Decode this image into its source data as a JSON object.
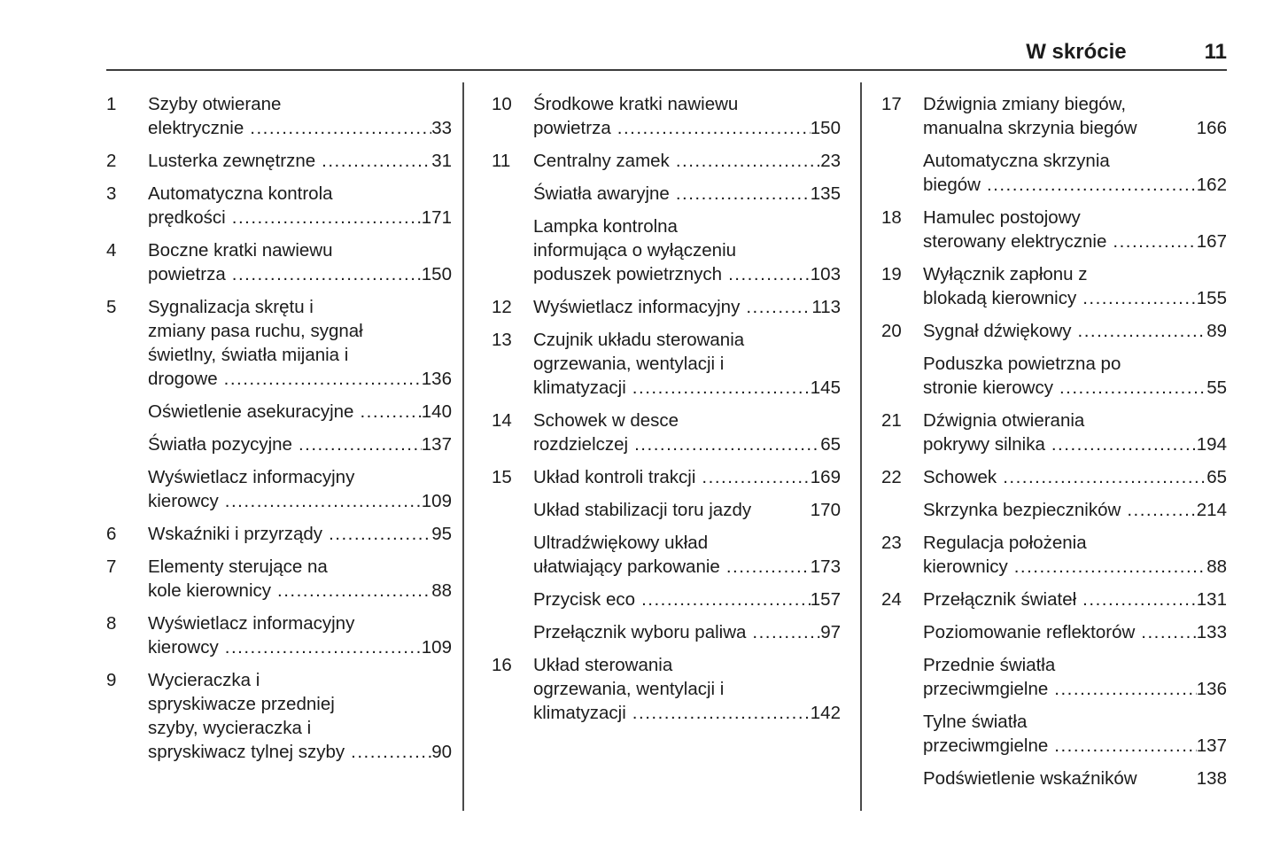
{
  "header": {
    "title": "W skrócie",
    "page_number": "11"
  },
  "toc": {
    "columns": [
      {
        "entries": [
          {
            "num": "1",
            "wrap": [
              "Szyby otwierane"
            ],
            "last": "elektrycznie",
            "page": "33",
            "dots": true
          },
          {
            "num": "2",
            "wrap": [],
            "last": "Lusterka zewnętrzne",
            "page": "31",
            "dots": true
          },
          {
            "num": "3",
            "wrap": [
              "Automatyczna kontrola"
            ],
            "last": "prędkości",
            "page": "171",
            "dots": true
          },
          {
            "num": "4",
            "wrap": [
              "Boczne kratki nawiewu"
            ],
            "last": "powietrza",
            "page": "150",
            "dots": true
          },
          {
            "num": "5",
            "wrap": [
              "Sygnalizacja skrętu i",
              "zmiany pasa ruchu, sygnał",
              "świetlny, światła mijania i"
            ],
            "last": "drogowe",
            "page": "136",
            "dots": true
          },
          {
            "num": "",
            "wrap": [],
            "last": "Oświetlenie asekuracyjne",
            "page": "140",
            "dots": true
          },
          {
            "num": "",
            "wrap": [],
            "last": "Światła pozycyjne",
            "page": "137",
            "dots": true
          },
          {
            "num": "",
            "wrap": [
              "Wyświetlacz informacyjny"
            ],
            "last": "kierowcy",
            "page": "109",
            "dots": true
          },
          {
            "num": "6",
            "wrap": [],
            "last": "Wskaźniki i przyrządy",
            "page": "95",
            "dots": true
          },
          {
            "num": "7",
            "wrap": [
              "Elementy sterujące na"
            ],
            "last": "kole kierownicy",
            "page": "88",
            "dots": true
          },
          {
            "num": "8",
            "wrap": [
              "Wyświetlacz informacyjny"
            ],
            "last": "kierowcy",
            "page": "109",
            "dots": true
          },
          {
            "num": "9",
            "wrap": [
              "Wycieraczka i",
              "spryskiwacze przedniej",
              "szyby, wycieraczka i"
            ],
            "last": "spryskiwacz tylnej szyby",
            "page": "90",
            "dots": true
          }
        ]
      },
      {
        "entries": [
          {
            "num": "10",
            "wrap": [
              "Środkowe kratki nawiewu"
            ],
            "last": "powietrza",
            "page": "150",
            "dots": true
          },
          {
            "num": "11",
            "wrap": [],
            "last": "Centralny zamek",
            "page": "23",
            "dots": true
          },
          {
            "num": "",
            "wrap": [],
            "last": "Światła awaryjne",
            "page": "135",
            "dots": true
          },
          {
            "num": "",
            "wrap": [
              "Lampka kontrolna",
              "informująca o wyłączeniu"
            ],
            "last": "poduszek powietrznych",
            "page": "103",
            "dots": true
          },
          {
            "num": "12",
            "wrap": [],
            "last": "Wyświetlacz informacyjny",
            "page": "113",
            "dots": true
          },
          {
            "num": "13",
            "wrap": [
              "Czujnik układu sterowania",
              "ogrzewania, wentylacji i"
            ],
            "last": "klimatyzacji",
            "page": "145",
            "dots": true
          },
          {
            "num": "14",
            "wrap": [
              "Schowek w desce"
            ],
            "last": "rozdzielczej",
            "page": "65",
            "dots": true
          },
          {
            "num": "15",
            "wrap": [],
            "last": "Układ kontroli trakcji",
            "page": "169",
            "dots": true
          },
          {
            "num": "",
            "wrap": [],
            "last": "Układ stabilizacji toru jazdy",
            "page": "170",
            "dots": false
          },
          {
            "num": "",
            "wrap": [
              "Ultradźwiękowy układ"
            ],
            "last": "ułatwiający parkowanie",
            "page": "173",
            "dots": true
          },
          {
            "num": "",
            "wrap": [],
            "last": "Przycisk eco",
            "page": "157",
            "dots": true
          },
          {
            "num": "",
            "wrap": [],
            "last": "Przełącznik wyboru paliwa",
            "page": "97",
            "dots": true
          },
          {
            "num": "16",
            "wrap": [
              "Układ sterowania",
              "ogrzewania, wentylacji i"
            ],
            "last": "klimatyzacji",
            "page": "142",
            "dots": true
          }
        ]
      },
      {
        "entries": [
          {
            "num": "17",
            "wrap": [
              "Dźwignia zmiany biegów,"
            ],
            "last": "manualna skrzynia biegów",
            "page": "166",
            "dots": false
          },
          {
            "num": "",
            "wrap": [
              "Automatyczna skrzynia"
            ],
            "last": "biegów",
            "page": "162",
            "dots": true
          },
          {
            "num": "18",
            "wrap": [
              "Hamulec postojowy"
            ],
            "last": "sterowany elektrycznie",
            "page": "167",
            "dots": true
          },
          {
            "num": "19",
            "wrap": [
              "Wyłącznik zapłonu z"
            ],
            "last": "blokadą kierownicy",
            "page": "155",
            "dots": true
          },
          {
            "num": "20",
            "wrap": [],
            "last": "Sygnał dźwiękowy",
            "page": "89",
            "dots": true
          },
          {
            "num": "",
            "wrap": [
              "Poduszka powietrzna po"
            ],
            "last": "stronie kierowcy",
            "page": "55",
            "dots": true
          },
          {
            "num": "21",
            "wrap": [
              "Dźwignia otwierania"
            ],
            "last": "pokrywy silnika",
            "page": "194",
            "dots": true
          },
          {
            "num": "22",
            "wrap": [],
            "last": "Schowek",
            "page": "65",
            "dots": true
          },
          {
            "num": "",
            "wrap": [],
            "last": "Skrzynka bezpieczników",
            "page": "214",
            "dots": true
          },
          {
            "num": "23",
            "wrap": [
              "Regulacja położenia"
            ],
            "last": "kierownicy",
            "page": "88",
            "dots": true
          },
          {
            "num": "24",
            "wrap": [],
            "last": "Przełącznik świateł",
            "page": "131",
            "dots": true
          },
          {
            "num": "",
            "wrap": [],
            "last": "Poziomowanie reflektorów",
            "page": "133",
            "dots": true
          },
          {
            "num": "",
            "wrap": [
              "Przednie światła"
            ],
            "last": "przeciwmgielne",
            "page": "136",
            "dots": true
          },
          {
            "num": "",
            "wrap": [
              "Tylne światła"
            ],
            "last": "przeciwmgielne",
            "page": "137",
            "dots": true
          },
          {
            "num": "",
            "wrap": [],
            "last": "Podświetlenie wskaźników",
            "page": "138",
            "dots": false
          }
        ]
      }
    ]
  }
}
